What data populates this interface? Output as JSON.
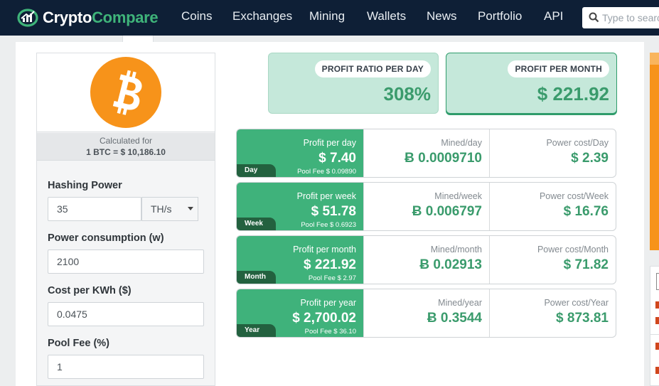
{
  "header": {
    "logo": {
      "part1": "Crypto",
      "part2": "Compare"
    },
    "nav": [
      "Coins",
      "Exchanges",
      "Mining",
      "Wallets",
      "News",
      "Portfolio",
      "API"
    ],
    "search_placeholder": "Type to search"
  },
  "calculator": {
    "coin_icon": "bitcoin-icon",
    "calculated_for_label": "Calculated for",
    "calculated_for_value": "1 BTC = $ 10,186.10",
    "hashing_power_label": "Hashing Power",
    "hashing_power_value": "35",
    "hashing_unit": "TH/s",
    "power_consumption_label": "Power consumption (w)",
    "power_consumption_value": "2100",
    "cost_per_kwh_label": "Cost per KWh ($)",
    "cost_per_kwh_value": "0.0475",
    "pool_fee_label": "Pool Fee (%)",
    "pool_fee_value": "1"
  },
  "summary": {
    "ratio_label": "PROFIT RATIO PER DAY",
    "ratio_value": "308%",
    "month_label": "PROFIT PER MONTH",
    "month_value": "$ 221.92"
  },
  "rows": [
    {
      "tag": "Day",
      "profit_label": "Profit per day",
      "profit_value": "$ 7.40",
      "pool_fee": "Pool Fee $ 0.09890",
      "mined_label": "Mined/day",
      "mined_value": "Ƀ 0.0009710",
      "power_label": "Power cost/Day",
      "power_value": "$ 2.39"
    },
    {
      "tag": "Week",
      "profit_label": "Profit per week",
      "profit_value": "$ 51.78",
      "pool_fee": "Pool Fee $ 0.6923",
      "mined_label": "Mined/week",
      "mined_value": "Ƀ 0.006797",
      "power_label": "Power cost/Week",
      "power_value": "$ 16.76"
    },
    {
      "tag": "Month",
      "profit_label": "Profit per month",
      "profit_value": "$ 221.92",
      "pool_fee": "Pool Fee $ 2.97",
      "mined_label": "Mined/month",
      "mined_value": "Ƀ 0.02913",
      "power_label": "Power cost/Month",
      "power_value": "$ 71.82"
    },
    {
      "tag": "Year",
      "profit_label": "Profit per year",
      "profit_value": "$ 2,700.02",
      "pool_fee": "Pool Fee $ 36.10",
      "mined_label": "Mined/year",
      "mined_value": "Ƀ 0.3544",
      "power_label": "Power cost/Year",
      "power_value": "$ 873.81"
    }
  ],
  "colors": {
    "nav_bg": "#0e1f36",
    "accent_green": "#3fb27b",
    "value_green": "#3a9b6c",
    "summary_bg": "#c5e8da",
    "bitcoin_orange": "#f7931a"
  }
}
